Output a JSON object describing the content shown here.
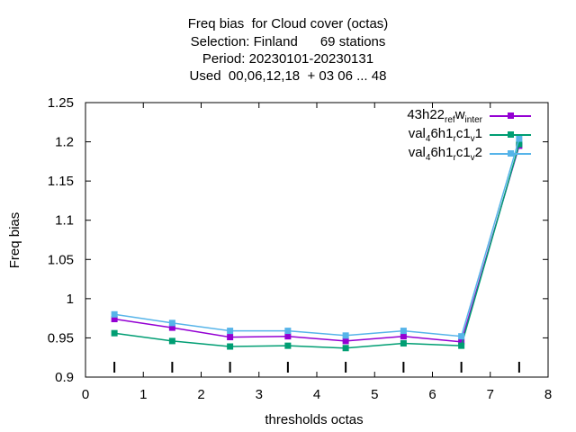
{
  "chart_data": {
    "type": "line",
    "title_lines": [
      "Freq bias  for Cloud cover (octas)",
      "Selection: Finland      69 stations",
      "Period: 20230101-20230131",
      "Used  00,06,12,18  + 03 06 ... 48"
    ],
    "xlabel": "thresholds octas",
    "ylabel": "Freq bias",
    "xlim": [
      0,
      8
    ],
    "ylim": [
      0.9,
      1.25
    ],
    "x_ticks": [
      "0",
      "1",
      "2",
      "3",
      "4",
      "5",
      "6",
      "7",
      "8"
    ],
    "y_ticks": [
      "0.9",
      "0.95",
      "1",
      "1.05",
      "1.1",
      "1.15",
      "1.2",
      "1.25"
    ],
    "x_tick_values": [
      0,
      1,
      2,
      3,
      4,
      5,
      6,
      7,
      8
    ],
    "y_tick_values": [
      0.9,
      0.95,
      1.0,
      1.05,
      1.1,
      1.15,
      1.2,
      1.25
    ],
    "grid": false,
    "legend_position": "top-right",
    "x": [
      0.5,
      1.5,
      2.5,
      3.5,
      4.5,
      5.5,
      6.5,
      7.5
    ],
    "series": [
      {
        "legend_parts": [
          "43h22",
          "ref",
          "w",
          "inter"
        ],
        "color": "#9400d3",
        "values": [
          0.974,
          0.963,
          0.951,
          0.952,
          0.946,
          0.952,
          0.945,
          1.195
        ]
      },
      {
        "legend_parts": [
          "val",
          "4",
          "6h1",
          "r",
          "c1",
          "v",
          "1"
        ],
        "color": "#009e73",
        "values": [
          0.956,
          0.946,
          0.939,
          0.94,
          0.937,
          0.943,
          0.94,
          1.197
        ]
      },
      {
        "legend_parts": [
          "val",
          "4",
          "6h1",
          "r",
          "c1",
          "v",
          "2"
        ],
        "color": "#56b4e9",
        "values": [
          0.98,
          0.969,
          0.959,
          0.959,
          0.953,
          0.959,
          0.952,
          1.204
        ]
      }
    ],
    "sample_markers_x": [
      0.5,
      1.5,
      2.5,
      3.5,
      4.5,
      5.5,
      6.5,
      7.5
    ]
  }
}
